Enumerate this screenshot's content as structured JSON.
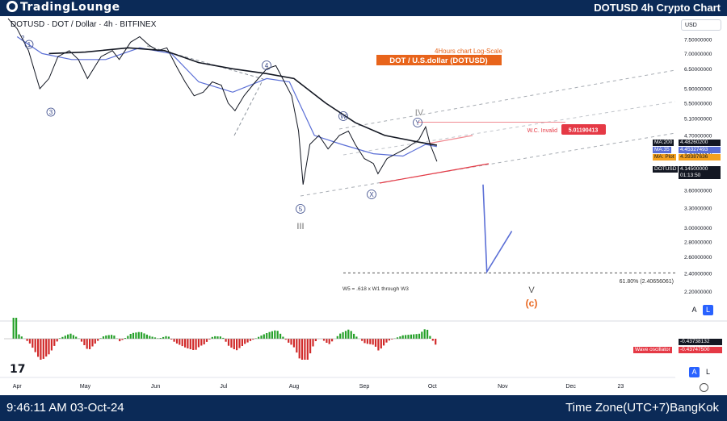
{
  "header": {
    "brand": "TradingLounge",
    "chart_title": "DOTUSD 4h Crypto Chart"
  },
  "symbol_line": "DOTUSD · DOT / Dollar · 4h · BITFINEX",
  "currency_selector": "USD",
  "annotations": {
    "subtitle": "4Hours chart  Log-Scale",
    "pair_title": "DOT / U.S.dollar (DOTUSD)",
    "invalid_label": "W.C. Invalid",
    "fib_label": "61.80% (2.40656061)",
    "w5_note": "W5 = .618 x W1 through W3"
  },
  "wave_labels": {
    "one": "1",
    "one_top": "2",
    "three": "3",
    "four": "4",
    "five": "5",
    "III": "III",
    "W": "W",
    "X": "X",
    "Y": "Y",
    "IV": "IV",
    "V": "V",
    "c": "(c)"
  },
  "price_tags": {
    "invalid_price": "5.01190413",
    "ma200_label": "MA:200",
    "ma200_value": "4.48260200",
    "ma35_label": "MA:35",
    "ma35_value": "4.45327493",
    "maplot_label": "MA: Plot",
    "maplot_value": "4.39387636",
    "last_symbol": "DOTUSD",
    "last_value": "4.14500000",
    "countdown": "01:13:50",
    "osc_value": "-0.43738132",
    "osc_label": "Wave oscillator",
    "osc_value2": "-0.43747500"
  },
  "scale_buttons": {
    "a": "A",
    "l": "L"
  },
  "footer": {
    "time": "9:46:11 AM 03-Oct-24",
    "timezone": "Time Zone(UTC+7)BangKok"
  },
  "colors": {
    "bar": "#0b2a57",
    "price": "#131722",
    "ma200": "#131722",
    "ma35": "#5b6fd6",
    "accent": "#e8641b",
    "invalid": "#e53945",
    "channel": "#9aa0a8",
    "osc_up": "#26a12a",
    "osc_down": "#d12a2a",
    "forecast": "#5b6fd6"
  },
  "chart_data": {
    "type": "line",
    "scale": "log",
    "ylim": [
      1.95,
      8.4
    ],
    "y_ticks": [
      "7.50000000",
      "7.00000000",
      "6.50000000",
      "5.90000000",
      "5.50000000",
      "5.10000000",
      "4.70000000",
      "4.30000000",
      "3.90000000",
      "3.60000000",
      "3.30000000",
      "3.00000000",
      "2.80000000",
      "2.60000000",
      "2.40000000",
      "2.20000000"
    ],
    "x_ticks": [
      "Apr",
      "May",
      "Jun",
      "Jul",
      "Aug",
      "Sep",
      "Oct",
      "Nov",
      "Dec",
      "23"
    ],
    "price_path": [
      [
        "2024-03-28",
        8.3
      ],
      [
        "2024-04-01",
        7.9
      ],
      [
        "2024-04-06",
        7.1
      ],
      [
        "2024-04-11",
        5.9
      ],
      [
        "2024-04-15",
        6.2
      ],
      [
        "2024-04-19",
        6.9
      ],
      [
        "2024-04-24",
        7.1
      ],
      [
        "2024-04-28",
        6.8
      ],
      [
        "2024-05-02",
        6.2
      ],
      [
        "2024-05-08",
        6.9
      ],
      [
        "2024-05-13",
        7.1
      ],
      [
        "2024-05-16",
        6.8
      ],
      [
        "2024-05-21",
        7.4
      ],
      [
        "2024-05-25",
        7.6
      ],
      [
        "2024-05-29",
        7.3
      ],
      [
        "2024-06-02",
        7.1
      ],
      [
        "2024-06-06",
        7.2
      ],
      [
        "2024-06-10",
        6.6
      ],
      [
        "2024-06-14",
        6.1
      ],
      [
        "2024-06-18",
        5.7
      ],
      [
        "2024-06-22",
        5.8
      ],
      [
        "2024-06-26",
        6.1
      ],
      [
        "2024-06-30",
        6.0
      ],
      [
        "2024-07-03",
        5.5
      ],
      [
        "2024-07-06",
        5.3
      ],
      [
        "2024-07-10",
        5.7
      ],
      [
        "2024-07-15",
        6.1
      ],
      [
        "2024-07-20",
        6.5
      ],
      [
        "2024-07-24",
        6.6
      ],
      [
        "2024-07-27",
        6.2
      ],
      [
        "2024-07-31",
        5.7
      ],
      [
        "2024-08-03",
        4.8
      ],
      [
        "2024-08-05",
        3.7
      ],
      [
        "2024-08-08",
        4.5
      ],
      [
        "2024-08-12",
        4.7
      ],
      [
        "2024-08-16",
        4.4
      ],
      [
        "2024-08-21",
        4.7
      ],
      [
        "2024-08-25",
        4.8
      ],
      [
        "2024-08-28",
        4.5
      ],
      [
        "2024-09-01",
        4.2
      ],
      [
        "2024-09-05",
        4.1
      ],
      [
        "2024-09-07",
        3.9
      ],
      [
        "2024-09-11",
        4.2
      ],
      [
        "2024-09-15",
        4.3
      ],
      [
        "2024-09-19",
        4.4
      ],
      [
        "2024-09-22",
        4.5
      ],
      [
        "2024-09-25",
        4.6
      ],
      [
        "2024-09-28",
        4.9
      ],
      [
        "2024-09-30",
        4.5
      ],
      [
        "2024-10-03",
        4.14
      ]
    ],
    "ma200_path": [
      [
        "2024-04-15",
        7.0
      ],
      [
        "2024-05-01",
        7.05
      ],
      [
        "2024-05-20",
        7.2
      ],
      [
        "2024-06-05",
        7.1
      ],
      [
        "2024-06-20",
        6.7
      ],
      [
        "2024-07-05",
        6.5
      ],
      [
        "2024-07-20",
        6.35
      ],
      [
        "2024-08-01",
        6.2
      ],
      [
        "2024-08-15",
        5.5
      ],
      [
        "2024-08-28",
        5.0
      ],
      [
        "2024-09-10",
        4.7
      ],
      [
        "2024-09-25",
        4.55
      ],
      [
        "2024-10-03",
        4.48
      ]
    ],
    "ma35_path": [
      [
        "2024-04-01",
        7.6
      ],
      [
        "2024-04-12",
        7.0
      ],
      [
        "2024-04-25",
        6.8
      ],
      [
        "2024-05-10",
        6.8
      ],
      [
        "2024-05-25",
        7.2
      ],
      [
        "2024-06-08",
        7.0
      ],
      [
        "2024-06-20",
        6.1
      ],
      [
        "2024-07-05",
        5.8
      ],
      [
        "2024-07-20",
        6.2
      ],
      [
        "2024-07-30",
        6.1
      ],
      [
        "2024-08-10",
        4.7
      ],
      [
        "2024-08-22",
        4.5
      ],
      [
        "2024-09-05",
        4.3
      ],
      [
        "2024-09-18",
        4.25
      ],
      [
        "2024-09-28",
        4.5
      ],
      [
        "2024-10-03",
        4.45
      ]
    ],
    "forecast_path": [
      [
        "2024-10-03",
        3.7
      ],
      [
        "2024-10-25",
        2.42
      ],
      [
        "2024-11-05",
        2.95
      ]
    ],
    "fib_level": 2.40656061,
    "invalid_level": 5.01190413,
    "last_price": 4.145
  }
}
